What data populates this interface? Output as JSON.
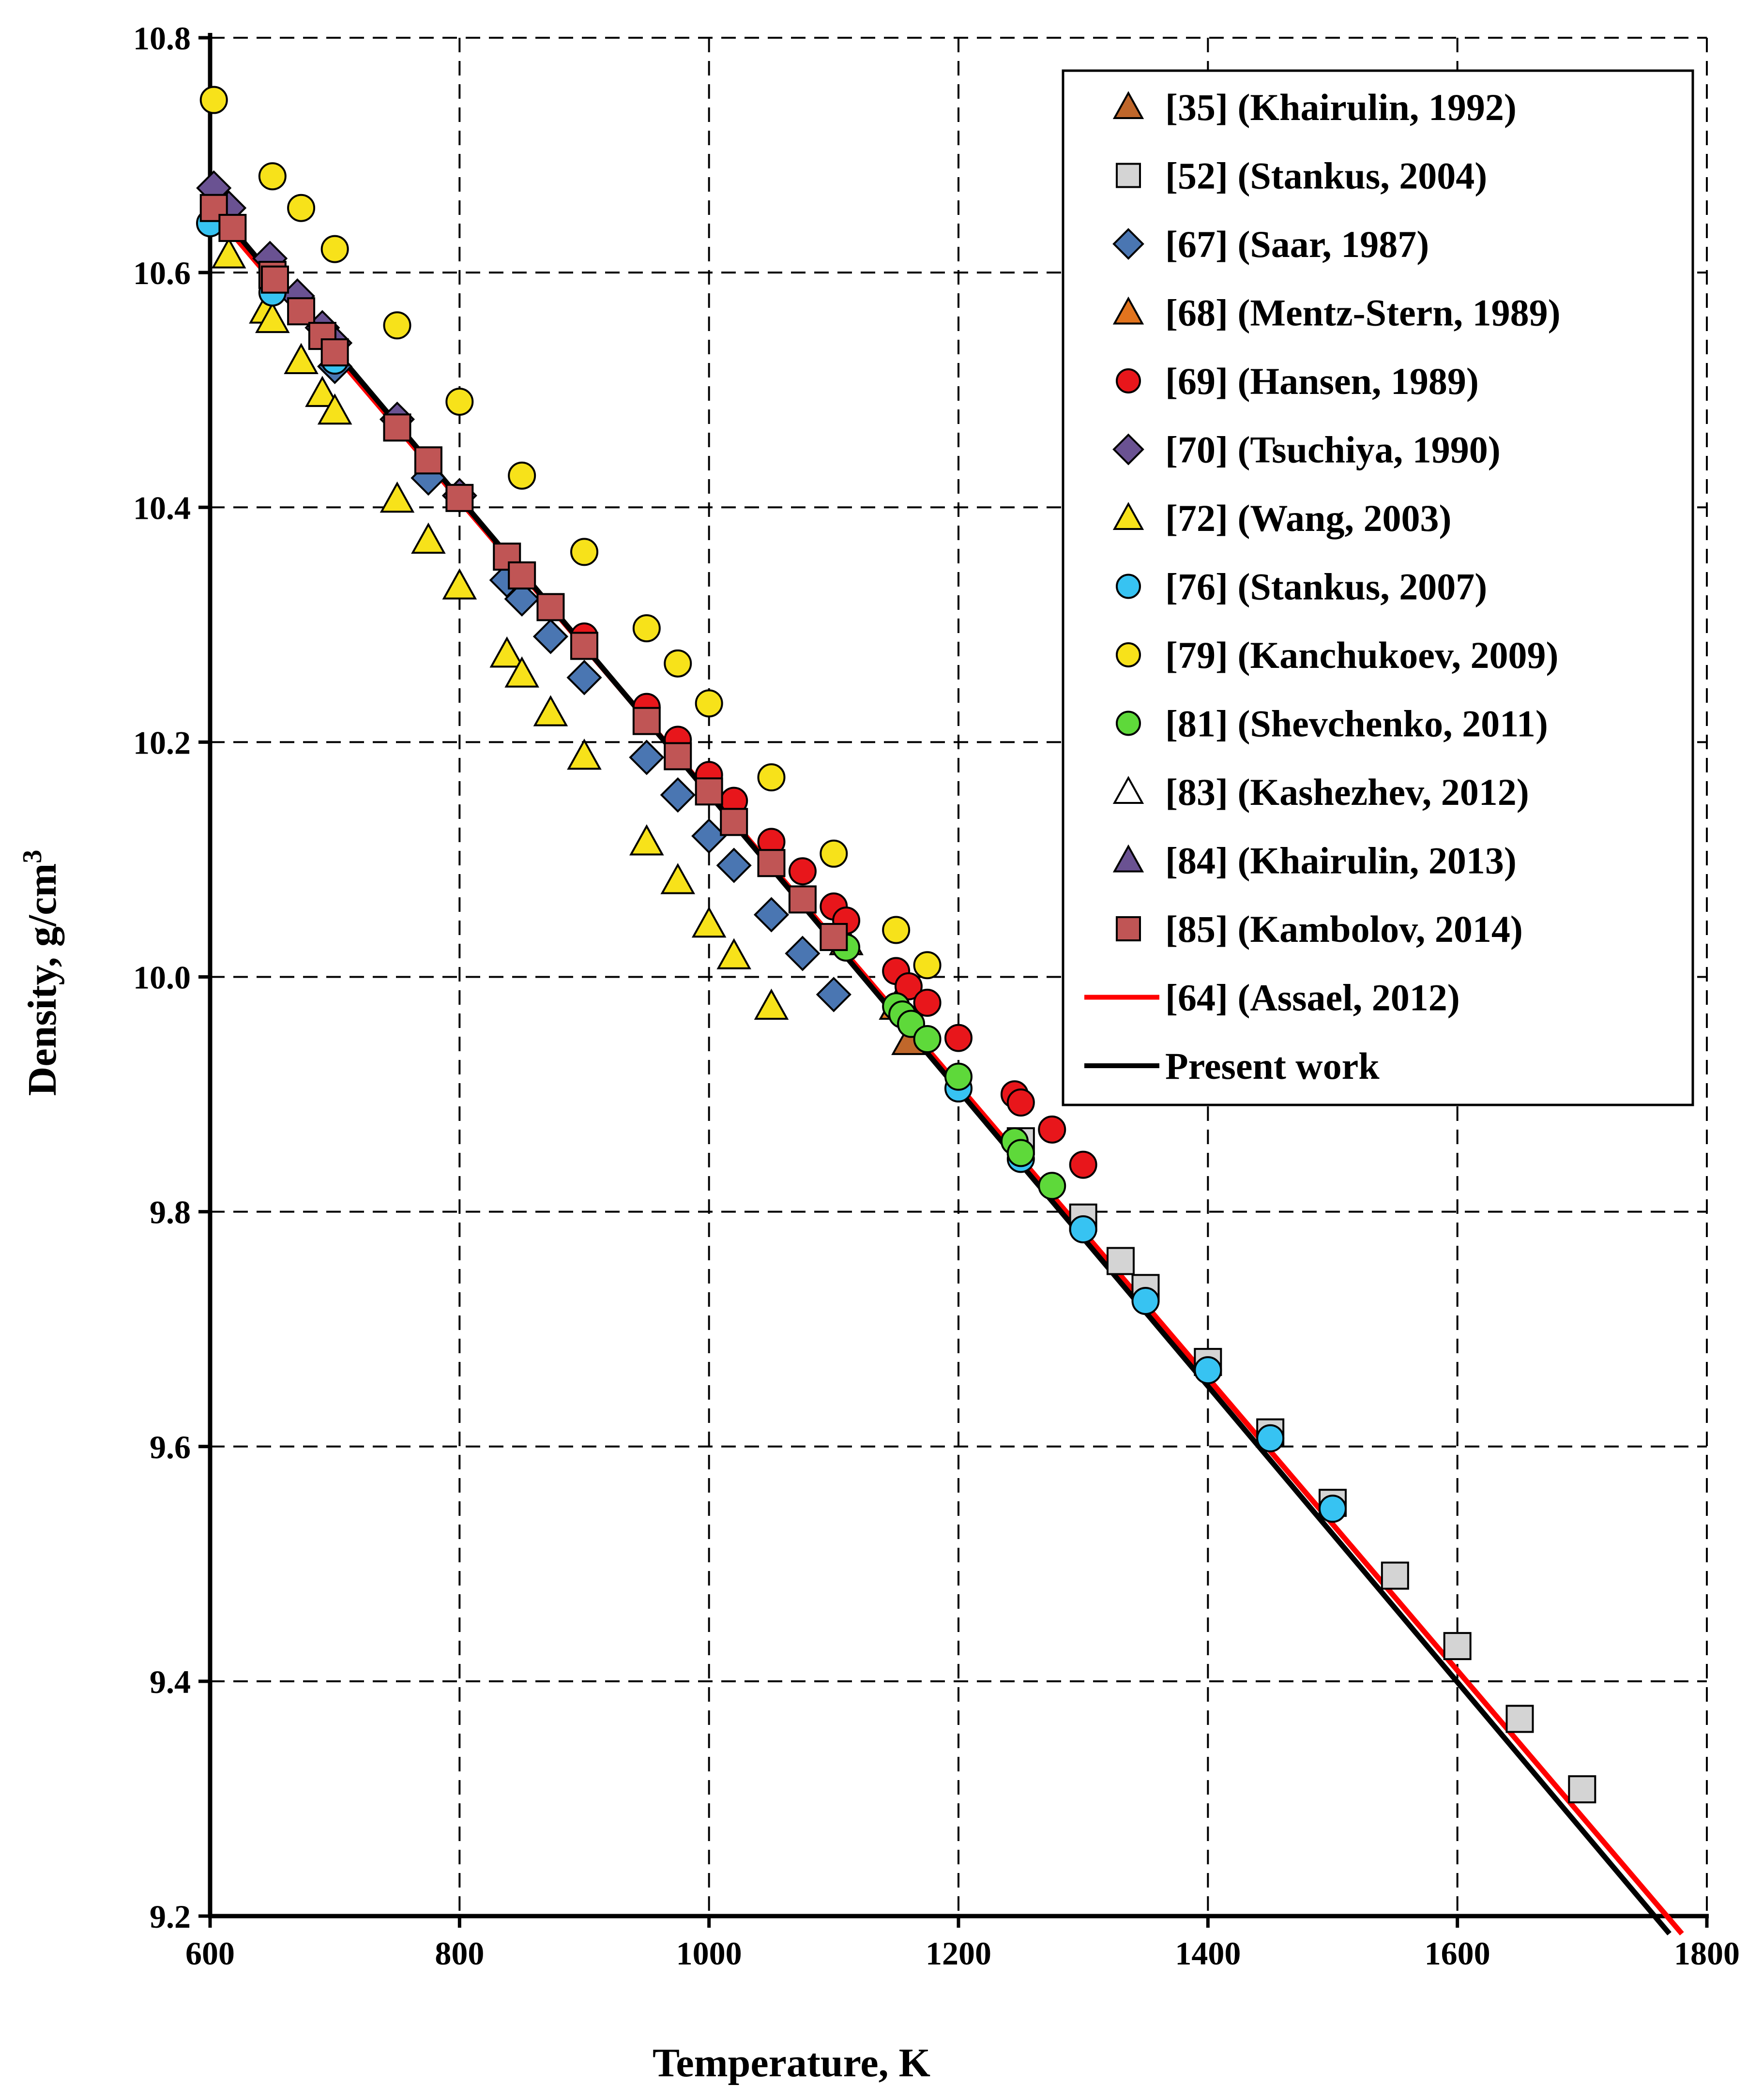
{
  "chart_data": {
    "type": "scatter",
    "xlabel": "Temperature,  K",
    "ylabel_prefix": "Density,  g/cm",
    "ylabel_sup": "3",
    "xlim": [
      600,
      1800
    ],
    "ylim": [
      9.2,
      10.8
    ],
    "x_ticks": [
      600,
      800,
      1000,
      1200,
      1400,
      1600,
      1800
    ],
    "y_ticks": [
      9.2,
      9.4,
      9.6,
      9.8,
      10.0,
      10.2,
      10.4,
      10.6,
      10.8
    ],
    "grid": true,
    "legend_position": "top-right",
    "series": [
      {
        "key": "s35",
        "name": "[35] (Khairulin, 1992)",
        "marker": "triangle",
        "fill": "#C0672B",
        "points": [
          [
            1160,
            9.945
          ]
        ]
      },
      {
        "key": "s52",
        "name": "[52] (Stankus, 2004)",
        "marker": "square",
        "fill": "#D4D4D4",
        "points": [
          [
            1250,
            9.86
          ],
          [
            1300,
            9.795
          ],
          [
            1330,
            9.758
          ],
          [
            1350,
            9.735
          ],
          [
            1400,
            9.672
          ],
          [
            1450,
            9.612
          ],
          [
            1500,
            9.552
          ],
          [
            1550,
            9.49
          ],
          [
            1600,
            9.43
          ],
          [
            1650,
            9.368
          ],
          [
            1700,
            9.308
          ]
        ]
      },
      {
        "key": "s67",
        "name": "[67] (Saar, 1987)",
        "marker": "diamond",
        "fill": "#4A76B2",
        "points": [
          [
            700,
            10.52
          ],
          [
            775,
            10.425
          ],
          [
            838,
            10.338
          ],
          [
            850,
            10.322
          ],
          [
            873,
            10.29
          ],
          [
            900,
            10.255
          ],
          [
            950,
            10.187
          ],
          [
            975,
            10.155
          ],
          [
            1000,
            10.12
          ],
          [
            1020,
            10.095
          ],
          [
            1050,
            10.053
          ],
          [
            1075,
            10.02
          ],
          [
            1100,
            9.985
          ]
        ]
      },
      {
        "key": "s68",
        "name": "[68] (Mentz-Stern, 1989)",
        "marker": "triangle",
        "fill": "#E2741E",
        "points": [
          [
            1110,
            10.03
          ],
          [
            1150,
            9.975
          ]
        ]
      },
      {
        "key": "s69",
        "name": "[69] (Hansen, 1989)",
        "marker": "circle",
        "fill": "#E8161B",
        "points": [
          [
            900,
            10.29
          ],
          [
            950,
            10.23
          ],
          [
            975,
            10.202
          ],
          [
            1000,
            10.172
          ],
          [
            1020,
            10.15
          ],
          [
            1050,
            10.115
          ],
          [
            1075,
            10.09
          ],
          [
            1100,
            10.06
          ],
          [
            1110,
            10.048
          ],
          [
            1150,
            10.005
          ],
          [
            1160,
            9.992
          ],
          [
            1175,
            9.978
          ],
          [
            1200,
            9.948
          ],
          [
            1245,
            9.9
          ],
          [
            1250,
            9.893
          ],
          [
            1275,
            9.87
          ],
          [
            1300,
            9.84
          ]
        ]
      },
      {
        "key": "s70",
        "name": "[70] (Tsuchiya, 1990)",
        "marker": "diamond",
        "fill": "#6A5292",
        "points": [
          [
            603,
            10.672
          ],
          [
            615,
            10.655
          ],
          [
            648,
            10.612
          ],
          [
            670,
            10.58
          ],
          [
            690,
            10.553
          ],
          [
            700,
            10.54
          ],
          [
            750,
            10.475
          ],
          [
            800,
            10.41
          ]
        ]
      },
      {
        "key": "s72",
        "name": "[72] (Wang, 2003)",
        "marker": "triangle",
        "fill": "#F7E21A",
        "points": [
          [
            615,
            10.615
          ],
          [
            645,
            10.568
          ],
          [
            650,
            10.56
          ],
          [
            673,
            10.525
          ],
          [
            690,
            10.497
          ],
          [
            700,
            10.482
          ],
          [
            750,
            10.407
          ],
          [
            775,
            10.372
          ],
          [
            800,
            10.333
          ],
          [
            838,
            10.275
          ],
          [
            850,
            10.258
          ],
          [
            873,
            10.225
          ],
          [
            900,
            10.188
          ],
          [
            950,
            10.115
          ],
          [
            975,
            10.082
          ],
          [
            1000,
            10.045
          ],
          [
            1020,
            10.018
          ],
          [
            1050,
            9.975
          ]
        ]
      },
      {
        "key": "s76",
        "name": "[76] (Stankus, 2007)",
        "marker": "circle",
        "fill": "#37C3F2",
        "points": [
          [
            600,
            10.642
          ],
          [
            650,
            10.583
          ],
          [
            700,
            10.525
          ],
          [
            1200,
            9.905
          ],
          [
            1250,
            9.845
          ],
          [
            1300,
            9.785
          ],
          [
            1350,
            9.724
          ],
          [
            1400,
            9.665
          ],
          [
            1450,
            9.607
          ],
          [
            1500,
            9.547
          ]
        ]
      },
      {
        "key": "s79",
        "name": "[79] (Kanchukoev, 2009)",
        "marker": "circle",
        "fill": "#F7E21A",
        "points": [
          [
            603,
            10.747
          ],
          [
            650,
            10.682
          ],
          [
            673,
            10.655
          ],
          [
            700,
            10.62
          ],
          [
            750,
            10.555
          ],
          [
            800,
            10.49
          ],
          [
            850,
            10.427
          ],
          [
            900,
            10.362
          ],
          [
            950,
            10.297
          ],
          [
            975,
            10.267
          ],
          [
            1000,
            10.233
          ],
          [
            1050,
            10.17
          ],
          [
            1100,
            10.105
          ],
          [
            1150,
            10.04
          ],
          [
            1175,
            10.01
          ]
        ]
      },
      {
        "key": "s81",
        "name": "[81] (Shevchenko, 2011)",
        "marker": "circle",
        "fill": "#5ED93A",
        "points": [
          [
            1110,
            10.025
          ],
          [
            1150,
            9.975
          ],
          [
            1155,
            9.968
          ],
          [
            1162,
            9.96
          ],
          [
            1175,
            9.947
          ],
          [
            1200,
            9.915
          ],
          [
            1245,
            9.86
          ],
          [
            1250,
            9.85
          ],
          [
            1275,
            9.822
          ]
        ]
      },
      {
        "key": "s83",
        "name": "[83] (Kashezhev, 2012)",
        "marker": "triangle",
        "fill": "#FFFFFF",
        "points": []
      },
      {
        "key": "s84",
        "name": "[84] (Khairulin, 2013)",
        "marker": "triangle",
        "fill": "#6A5292",
        "points": []
      },
      {
        "key": "s85",
        "name": "[85] (Kambolov, 2014)",
        "marker": "square",
        "fill": "#C05555",
        "points": [
          [
            603,
            10.655
          ],
          [
            618,
            10.638
          ],
          [
            650,
            10.598
          ],
          [
            652,
            10.594
          ],
          [
            673,
            10.567
          ],
          [
            690,
            10.546
          ],
          [
            700,
            10.532
          ],
          [
            750,
            10.468
          ],
          [
            775,
            10.44
          ],
          [
            800,
            10.408
          ],
          [
            838,
            10.358
          ],
          [
            850,
            10.342
          ],
          [
            873,
            10.315
          ],
          [
            900,
            10.282
          ],
          [
            950,
            10.218
          ],
          [
            975,
            10.188
          ],
          [
            1000,
            10.158
          ],
          [
            1020,
            10.132
          ],
          [
            1050,
            10.097
          ],
          [
            1075,
            10.066
          ],
          [
            1100,
            10.034
          ]
        ]
      }
    ],
    "lines": [
      {
        "key": "l64",
        "name": "[64] (Assael, 2012)",
        "color": "#FF0000",
        "points": [
          [
            600,
            10.655
          ],
          [
            1780,
            9.185
          ]
        ]
      },
      {
        "key": "lpw",
        "name": "Present work",
        "color": "#000000",
        "points": [
          [
            600,
            10.66
          ],
          [
            1770,
            9.185
          ]
        ]
      }
    ]
  }
}
